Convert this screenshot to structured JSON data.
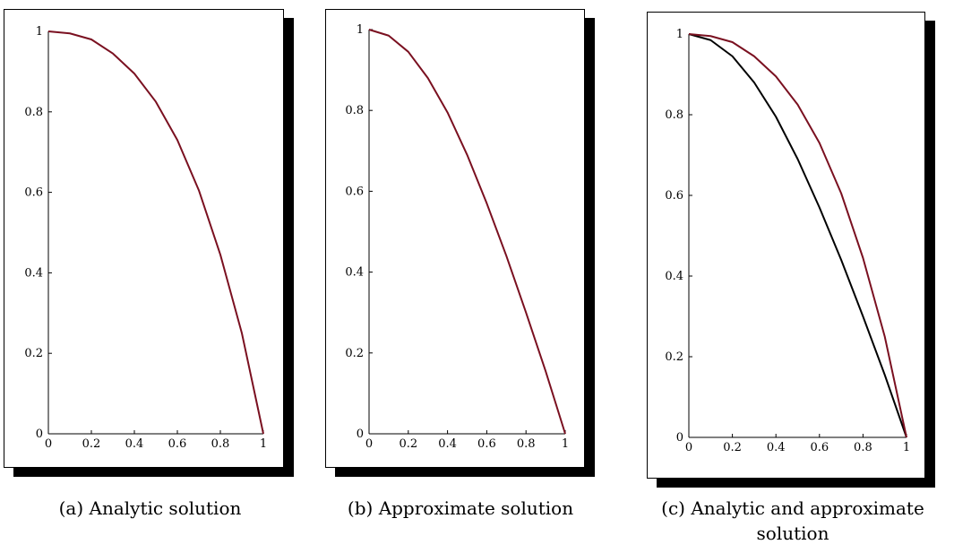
{
  "captions": {
    "a": "(a) Analytic solution",
    "b": "(b) Approximate solution",
    "c": "(c) Analytic and approximate solution"
  },
  "colors": {
    "analytic": "#7a1020",
    "approximate": "#000000"
  },
  "chart_data": [
    {
      "type": "line",
      "xlim": [
        0,
        1
      ],
      "ylim": [
        0,
        1
      ],
      "x_ticks": [
        "0",
        "0.2",
        "0.4",
        "0.6",
        "0.8",
        "1"
      ],
      "y_ticks": [
        "0",
        "0.2",
        "0.4",
        "0.6",
        "0.8",
        "1"
      ],
      "grid": false,
      "series": [
        {
          "color": "#7a1020",
          "x": [
            0,
            0.1,
            0.2,
            0.3,
            0.4,
            0.5,
            0.6,
            0.7,
            0.8,
            0.9,
            1.0
          ],
          "y": [
            1.0,
            0.995,
            0.98,
            0.945,
            0.895,
            0.825,
            0.73,
            0.605,
            0.445,
            0.25,
            0.0
          ]
        }
      ]
    },
    {
      "type": "line",
      "xlim": [
        0,
        1
      ],
      "ylim": [
        0,
        1
      ],
      "x_ticks": [
        "0",
        "0.2",
        "0.4",
        "0.6",
        "0.8",
        "1"
      ],
      "y_ticks": [
        "0",
        "0.2",
        "0.4",
        "0.6",
        "0.8",
        "1"
      ],
      "grid": false,
      "series": [
        {
          "color": "#7a1020",
          "x": [
            0,
            0.1,
            0.2,
            0.3,
            0.4,
            0.5,
            0.6,
            0.7,
            0.8,
            0.9,
            1.0
          ],
          "y": [
            1.0,
            0.985,
            0.945,
            0.88,
            0.795,
            0.69,
            0.57,
            0.44,
            0.3,
            0.155,
            0.0
          ]
        }
      ]
    },
    {
      "type": "line",
      "xlim": [
        0,
        1
      ],
      "ylim": [
        0,
        1
      ],
      "x_ticks": [
        "0",
        "0.2",
        "0.4",
        "0.6",
        "0.8",
        "1"
      ],
      "y_ticks": [
        "0",
        "0.2",
        "0.4",
        "0.6",
        "0.8",
        "1"
      ],
      "grid": false,
      "series": [
        {
          "color": "#7a1020",
          "x": [
            0,
            0.1,
            0.2,
            0.3,
            0.4,
            0.5,
            0.6,
            0.7,
            0.8,
            0.9,
            1.0
          ],
          "y": [
            1.0,
            0.995,
            0.98,
            0.945,
            0.895,
            0.825,
            0.73,
            0.605,
            0.445,
            0.25,
            0.0
          ]
        },
        {
          "color": "#000000",
          "x": [
            0,
            0.1,
            0.2,
            0.3,
            0.4,
            0.5,
            0.6,
            0.7,
            0.8,
            0.9,
            1.0
          ],
          "y": [
            1.0,
            0.985,
            0.945,
            0.88,
            0.795,
            0.69,
            0.57,
            0.44,
            0.3,
            0.155,
            0.0
          ]
        }
      ]
    }
  ]
}
